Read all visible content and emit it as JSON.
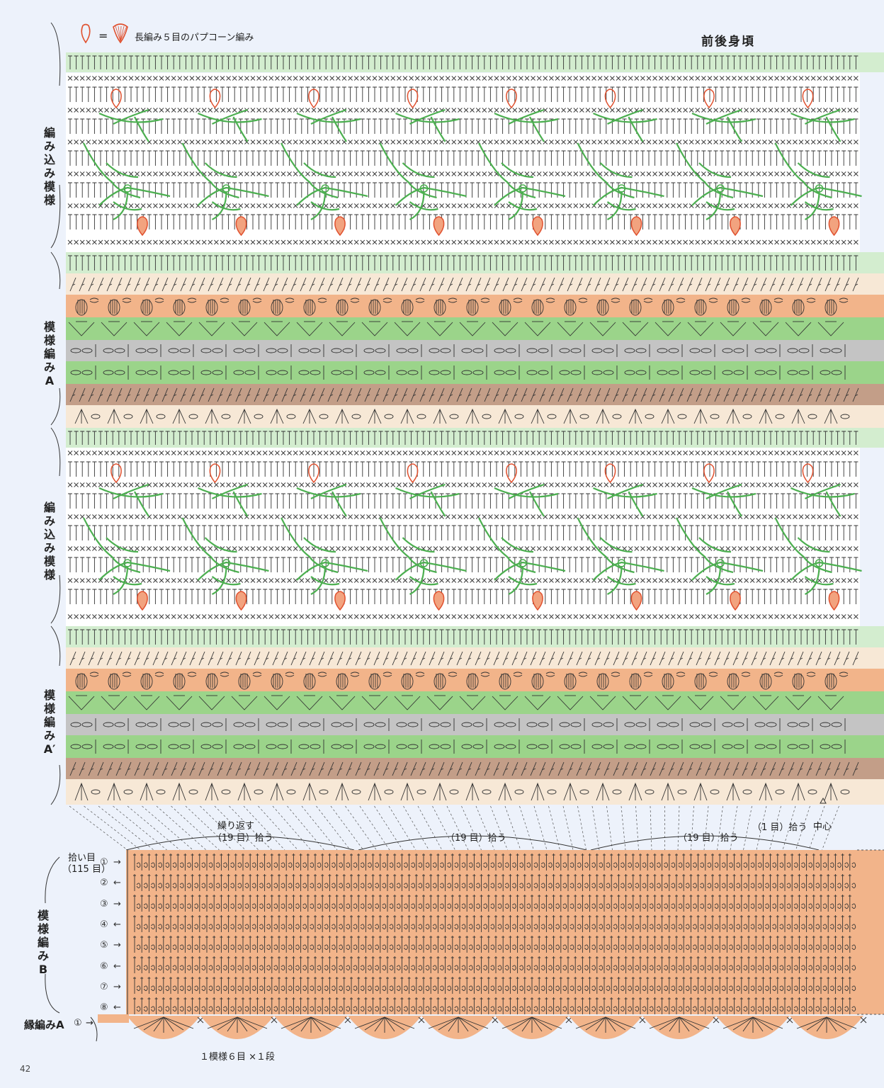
{
  "header": {
    "legend_equals": "=",
    "legend_text": "長編み５目のパプコーン編み",
    "title": "前後身頃"
  },
  "side_labels": {
    "intarsia_1": "編み込み模様",
    "pattern_a": "模様編みA",
    "intarsia_2": "編み込み模様",
    "pattern_a_prime": "模様編みA′",
    "pattern_b": "模様編みB"
  },
  "pickup": {
    "repeat": "繰り返す",
    "repeat_count": "（19 目）拾う",
    "count_19": "（19 目）拾う",
    "count_19_b": "（19 目）拾う",
    "count_1": "（1 目）拾う",
    "center": "中心",
    "stitches_label": "拾い目",
    "stitches_total": "（115 目）"
  },
  "rows_b": [
    {
      "num": "①",
      "dir": "→"
    },
    {
      "num": "②",
      "dir": "←"
    },
    {
      "num": "③",
      "dir": "→"
    },
    {
      "num": "④",
      "dir": "←"
    },
    {
      "num": "⑤",
      "dir": "→"
    },
    {
      "num": "⑥",
      "dir": "←"
    },
    {
      "num": "⑦",
      "dir": "→"
    },
    {
      "num": "⑧",
      "dir": "←"
    }
  ],
  "border": {
    "label": "縁編みA",
    "row": "①",
    "dir": "→",
    "repeat_note": "１模様６目 ×１段"
  },
  "page_number": "42",
  "colors": {
    "background": "#edf2fb",
    "light_green": "#d3edcf",
    "cream": "#f7e8d6",
    "salmon": "#f2b48a",
    "green": "#9bd48a",
    "gray": "#c4c4c4",
    "brown": "#c39e88",
    "motif_green": "#4caf50",
    "motif_red": "#e0512f"
  },
  "icons": [
    "popcorn-symbol-icon",
    "double-crochet-5-popcorn-icon"
  ]
}
